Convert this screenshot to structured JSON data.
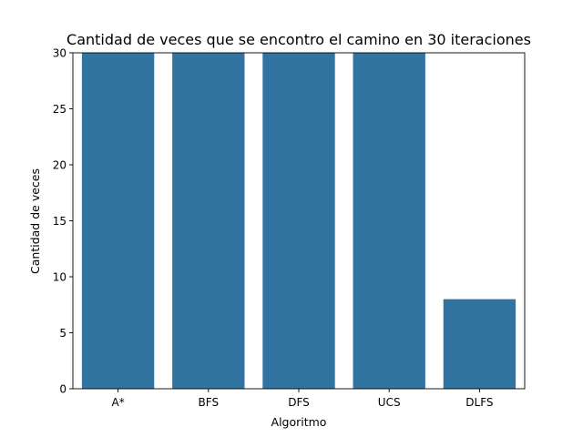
{
  "chart_data": {
    "type": "bar",
    "title": "Cantidad de veces que se encontro el camino en 30 iteraciones",
    "xlabel": "Algoritmo",
    "ylabel": "Cantidad de veces",
    "categories": [
      "A*",
      "BFS",
      "DFS",
      "UCS",
      "DLFS"
    ],
    "values": [
      30,
      30,
      30,
      30,
      8
    ],
    "ylim": [
      0,
      30
    ],
    "yticks": [
      0,
      5,
      10,
      15,
      20,
      25,
      30
    ],
    "grid": false,
    "legend": "none",
    "bar_color": "#3274a1"
  }
}
